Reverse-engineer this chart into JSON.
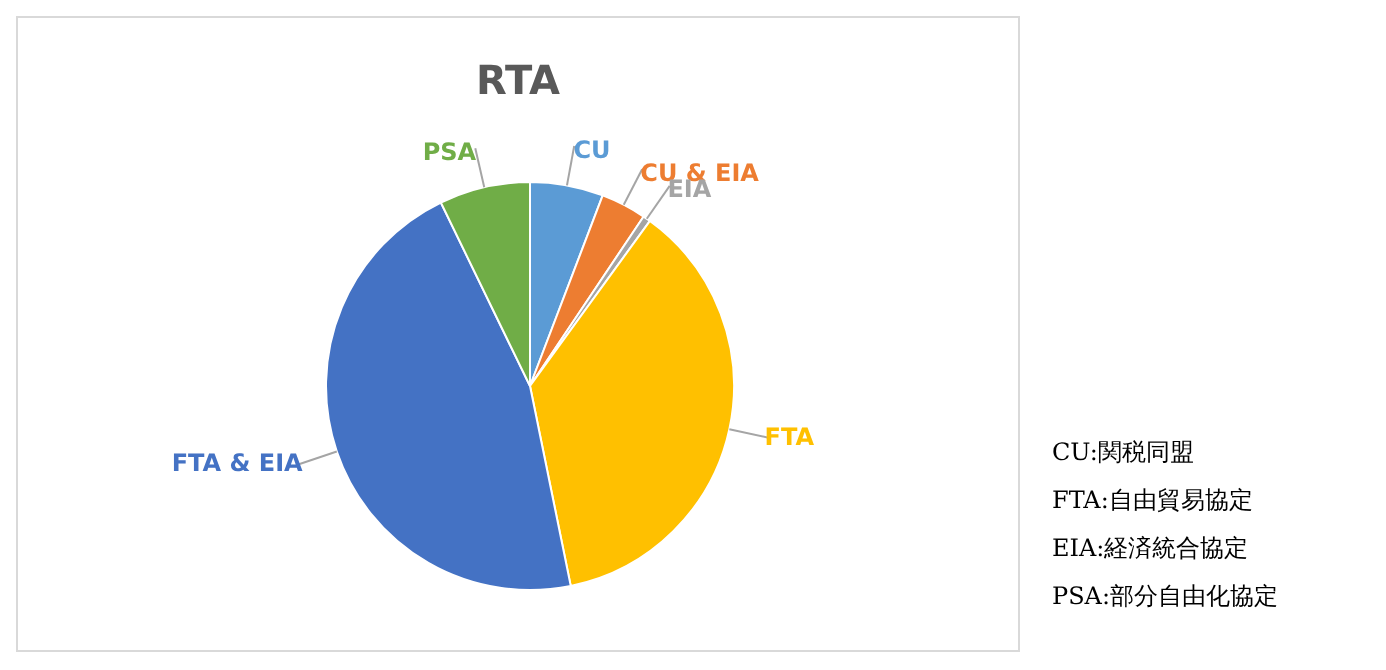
{
  "chart_data": {
    "type": "pie",
    "title": "RTA",
    "categories": [
      "CU",
      "CU & EIA",
      "EIA",
      "FTA",
      "FTA & EIA",
      "PSA"
    ],
    "values": [
      5.8,
      3.6,
      0.6,
      36.8,
      46,
      7.2
    ],
    "colors": [
      "#5b9bd5",
      "#ed7d31",
      "#a5a5a5",
      "#ffc000",
      "#4472c4",
      "#70ad47"
    ],
    "legend": false,
    "annotations": [
      "CU:関税同盟",
      "FTA:自由貿易協定",
      "EIA:経済統合協定",
      "PSA:部分自由化協定"
    ]
  }
}
